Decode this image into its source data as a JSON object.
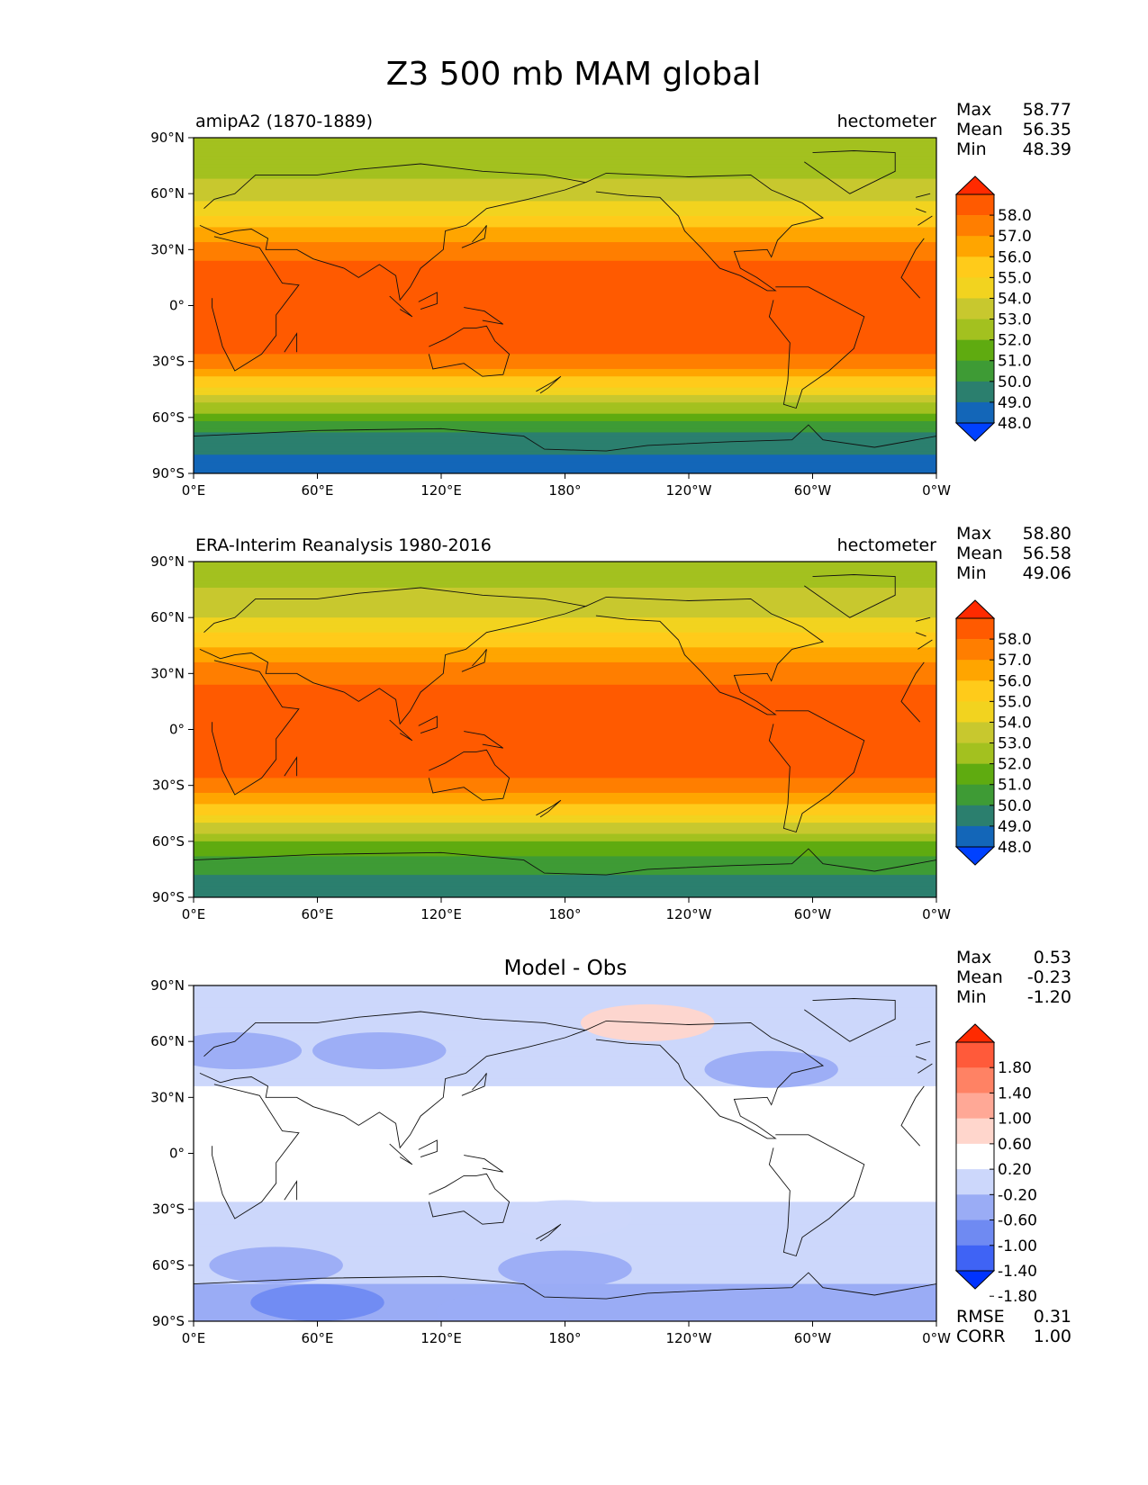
{
  "figure_title": "Z3 500 mb MAM global",
  "chart_data": [
    {
      "type": "heatmap",
      "title": "amipA2 (1870-1889)",
      "units": "hectometer",
      "xticks": [
        "0°E",
        "60°E",
        "120°E",
        "180°",
        "120°W",
        "60°W",
        "0°W"
      ],
      "yticks": [
        "90°N",
        "60°N",
        "30°N",
        "0°",
        "30°S",
        "60°S",
        "90°S"
      ],
      "stats": [
        {
          "label": "Max",
          "value": "58.77"
        },
        {
          "label": "Mean",
          "value": "56.35"
        },
        {
          "label": "Min",
          "value": "48.39"
        }
      ],
      "colorbar": {
        "labels": [
          "58.0",
          "57.0",
          "56.0",
          "55.0",
          "54.0",
          "53.0",
          "52.0",
          "51.0",
          "50.0",
          "49.0",
          "48.0"
        ],
        "colors": [
          "#ff2a00",
          "#ff5a00",
          "#ff7e00",
          "#ffa500",
          "#ffcb1a",
          "#f2d31f",
          "#c8c82e",
          "#a3c11f",
          "#5fab10",
          "#3e9b35",
          "#2b7f6e",
          "#1366b8",
          "#0041ff"
        ]
      },
      "bands": [
        {
          "lat": 90,
          "value": 52.2
        },
        {
          "lat": 80,
          "value": 52.4
        },
        {
          "lat": 70,
          "value": 52.9
        },
        {
          "lat": 60,
          "value": 53.6
        },
        {
          "lat": 50,
          "value": 54.8
        },
        {
          "lat": 40,
          "value": 56.4
        },
        {
          "lat": 30,
          "value": 57.5
        },
        {
          "lat": 20,
          "value": 58.3
        },
        {
          "lat": 0,
          "value": 58.6
        },
        {
          "lat": -20,
          "value": 58.4
        },
        {
          "lat": -30,
          "value": 57.6
        },
        {
          "lat": -40,
          "value": 55.8
        },
        {
          "lat": -50,
          "value": 53.6
        },
        {
          "lat": -60,
          "value": 51.5
        },
        {
          "lat": -70,
          "value": 49.8
        },
        {
          "lat": -80,
          "value": 49.0
        },
        {
          "lat": -90,
          "value": 48.8
        }
      ]
    },
    {
      "type": "heatmap",
      "title": "ERA-Interim Reanalysis 1980-2016",
      "units": "hectometer",
      "xticks": [
        "0°E",
        "60°E",
        "120°E",
        "180°",
        "120°W",
        "60°W",
        "0°W"
      ],
      "yticks": [
        "90°N",
        "60°N",
        "30°N",
        "0°",
        "30°S",
        "60°S",
        "90°S"
      ],
      "stats": [
        {
          "label": "Max",
          "value": "58.80"
        },
        {
          "label": "Mean",
          "value": "56.58"
        },
        {
          "label": "Min",
          "value": "49.06"
        }
      ],
      "colorbar": {
        "labels": [
          "58.0",
          "57.0",
          "56.0",
          "55.0",
          "54.0",
          "53.0",
          "52.0",
          "51.0",
          "50.0",
          "49.0",
          "48.0"
        ],
        "colors": [
          "#ff2a00",
          "#ff5a00",
          "#ff7e00",
          "#ffa500",
          "#ffcb1a",
          "#f2d31f",
          "#c8c82e",
          "#a3c11f",
          "#5fab10",
          "#3e9b35",
          "#2b7f6e",
          "#1366b8",
          "#0041ff"
        ]
      },
      "bands": [
        {
          "lat": 90,
          "value": 52.6
        },
        {
          "lat": 80,
          "value": 52.8
        },
        {
          "lat": 70,
          "value": 53.2
        },
        {
          "lat": 60,
          "value": 54.0
        },
        {
          "lat": 50,
          "value": 55.2
        },
        {
          "lat": 40,
          "value": 56.6
        },
        {
          "lat": 30,
          "value": 57.6
        },
        {
          "lat": 20,
          "value": 58.3
        },
        {
          "lat": 0,
          "value": 58.6
        },
        {
          "lat": -20,
          "value": 58.4
        },
        {
          "lat": -30,
          "value": 57.7
        },
        {
          "lat": -40,
          "value": 56.0
        },
        {
          "lat": -50,
          "value": 54.0
        },
        {
          "lat": -60,
          "value": 52.0
        },
        {
          "lat": -70,
          "value": 50.6
        },
        {
          "lat": -80,
          "value": 49.9
        },
        {
          "lat": -90,
          "value": 49.6
        }
      ]
    },
    {
      "type": "heatmap",
      "title": "Model - Obs",
      "units": "",
      "xticks": [
        "0°E",
        "60°E",
        "120°E",
        "180°",
        "120°W",
        "60°W",
        "0°W"
      ],
      "yticks": [
        "90°N",
        "60°N",
        "30°N",
        "0°",
        "30°S",
        "60°S",
        "90°S"
      ],
      "stats": [
        {
          "label": "Max",
          "value": "0.53"
        },
        {
          "label": "Mean",
          "value": "-0.23"
        },
        {
          "label": "Min",
          "value": "-1.20"
        }
      ],
      "metrics": [
        {
          "label": "RMSE",
          "value": "0.31"
        },
        {
          "label": "CORR",
          "value": "1.00"
        }
      ],
      "colorbar": {
        "labels": [
          "1.80",
          "1.40",
          "1.00",
          "0.60",
          "0.20",
          "-0.20",
          "-0.60",
          "-1.00",
          "-1.40",
          "-1.80"
        ],
        "colors": [
          "#ff2a00",
          "#ff5a3a",
          "#ff8264",
          "#ffa896",
          "#ffd6cc",
          "#ffffff",
          "#ccd7fb",
          "#9aacf5",
          "#6f8af2",
          "#3f63f5",
          "#0033ff"
        ]
      },
      "bands": [
        {
          "lat": 90,
          "value": -0.3
        },
        {
          "lat": 80,
          "value": -0.3
        },
        {
          "lat": 70,
          "value": -0.3
        },
        {
          "lat": 60,
          "value": -0.35
        },
        {
          "lat": 50,
          "value": -0.3
        },
        {
          "lat": 40,
          "value": -0.25
        },
        {
          "lat": 30,
          "value": -0.1
        },
        {
          "lat": 0,
          "value": -0.05
        },
        {
          "lat": -20,
          "value": -0.1
        },
        {
          "lat": -30,
          "value": -0.25
        },
        {
          "lat": -40,
          "value": -0.35
        },
        {
          "lat": -50,
          "value": -0.4
        },
        {
          "lat": -60,
          "value": -0.45
        },
        {
          "lat": -70,
          "value": -0.6
        },
        {
          "lat": -80,
          "value": -0.75
        },
        {
          "lat": -90,
          "value": -0.8
        }
      ],
      "anomalies": [
        {
          "lon": 220,
          "lat": 70,
          "value": 0.4
        },
        {
          "lon": 40,
          "lat": -60,
          "value": -0.7
        },
        {
          "lon": 60,
          "lat": -80,
          "value": -1.1
        },
        {
          "lon": 150,
          "lat": -85,
          "value": -0.9
        },
        {
          "lon": 180,
          "lat": -62,
          "value": -0.75
        },
        {
          "lon": 90,
          "lat": 55,
          "value": -0.7
        },
        {
          "lon": 280,
          "lat": 45,
          "value": -0.75
        },
        {
          "lon": 180,
          "lat": -35,
          "value": -0.3
        },
        {
          "lon": 20,
          "lat": 55,
          "value": -0.65
        }
      ]
    }
  ]
}
